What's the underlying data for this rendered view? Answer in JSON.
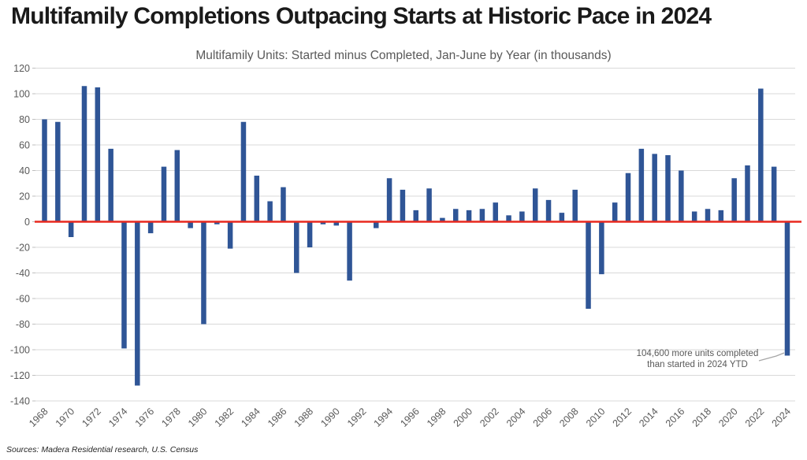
{
  "header": {
    "title": "Multifamily Completions Outpacing Starts at Historic Pace in 2024",
    "subtitle": "Multifamily Units: Started minus Completed, Jan-June by Year (in thousands)"
  },
  "annotation": {
    "line1": "104,600 more units completed",
    "line2": "than started in 2024 YTD"
  },
  "footer": {
    "sources": "Sources: Madera Residential research, U.S. Census"
  },
  "colors": {
    "bar": "#2f5596",
    "zero_line": "#e8291f",
    "gridline": "#d9d9d9",
    "tick": "#bfbfbf",
    "axis_text": "#595959",
    "callout": "#a6a6a6",
    "title_text": "#1a1a1a"
  },
  "chart_data": {
    "type": "bar",
    "title": "Multifamily Units: Started minus Completed, Jan-June by Year (in thousands)",
    "xlabel": "",
    "ylabel": "",
    "x": [
      1968,
      1969,
      1970,
      1971,
      1972,
      1973,
      1974,
      1975,
      1976,
      1977,
      1978,
      1979,
      1980,
      1981,
      1982,
      1983,
      1984,
      1985,
      1986,
      1987,
      1988,
      1989,
      1990,
      1991,
      1992,
      1993,
      1994,
      1995,
      1996,
      1997,
      1998,
      1999,
      2000,
      2001,
      2002,
      2003,
      2004,
      2005,
      2006,
      2007,
      2008,
      2009,
      2010,
      2011,
      2012,
      2013,
      2014,
      2015,
      2016,
      2017,
      2018,
      2019,
      2020,
      2021,
      2022,
      2023,
      2024
    ],
    "values": [
      80,
      78,
      -12,
      106,
      105,
      57,
      -99,
      -128,
      -9,
      43,
      56,
      -5,
      -80,
      -2,
      -21,
      78,
      36,
      16,
      27,
      -40,
      -20,
      -2,
      -3,
      -46,
      0,
      -5,
      34,
      25,
      9,
      26,
      3,
      10,
      9,
      10,
      15,
      5,
      8,
      26,
      17,
      7,
      25,
      -68,
      -41,
      15,
      38,
      57,
      53,
      52,
      40,
      8,
      10,
      9,
      34,
      44,
      104,
      43,
      -104.6
    ],
    "ylim": [
      -140,
      120
    ],
    "yticks": [
      120,
      100,
      80,
      60,
      40,
      20,
      0,
      -20,
      -40,
      -60,
      -80,
      -100,
      -120,
      -140
    ],
    "xtick_labels": [
      "1968",
      "1970",
      "1972",
      "1974",
      "1976",
      "1978",
      "1980",
      "1982",
      "1984",
      "1986",
      "1988",
      "1990",
      "1992",
      "1994",
      "1996",
      "1998",
      "2000",
      "2002",
      "2004",
      "2006",
      "2008",
      "2010",
      "2012",
      "2014",
      "2016",
      "2018",
      "2020",
      "2022",
      "2024"
    ],
    "grid": true,
    "legend": "none",
    "zero_line": true,
    "annotation_target_year": 2024
  }
}
